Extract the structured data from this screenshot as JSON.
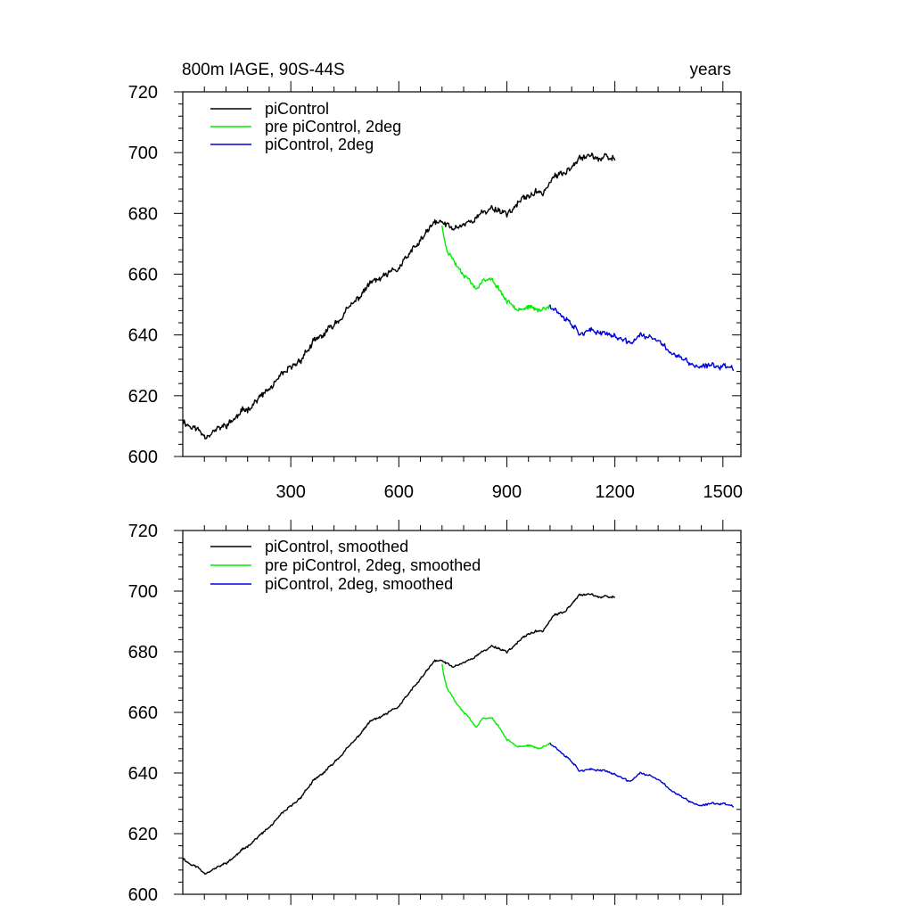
{
  "colors": {
    "picontrol": "#000000",
    "pre_picontrol_2deg": "#00ee00",
    "picontrol_2deg": "#0000dd",
    "axis": "#000000",
    "background": "#ffffff"
  },
  "chart_data": [
    {
      "type": "line",
      "title": "800m IAGE, 90S-44S",
      "title_right": "years",
      "xlabel": "",
      "ylabel": "",
      "xlim": [
        0,
        1550
      ],
      "ylim": [
        600,
        720
      ],
      "xticks": [
        300,
        600,
        900,
        1200,
        1500
      ],
      "xticklabels": [
        "300",
        "600",
        "900",
        "1200",
        "1500"
      ],
      "yticks": [
        600,
        620,
        640,
        660,
        680,
        700,
        720
      ],
      "yticklabels": [
        "600",
        "620",
        "640",
        "660",
        "680",
        "700",
        "720"
      ],
      "grid": false,
      "legend_position": "top-left",
      "series": [
        {
          "name": "piControl",
          "color_key": "picontrol",
          "noise": 1.3,
          "seed": 11,
          "x": [
            0,
            20,
            40,
            60,
            80,
            100,
            130,
            160,
            200,
            240,
            280,
            320,
            360,
            400,
            440,
            480,
            520,
            560,
            600,
            640,
            680,
            700,
            720,
            750,
            790,
            820,
            860,
            900,
            940,
            960,
            1000,
            1030,
            1060,
            1080,
            1100,
            1130,
            1160,
            1200
          ],
          "values": [
            612,
            610,
            609,
            607,
            608,
            609,
            611,
            614,
            618,
            622,
            627,
            631,
            637,
            641,
            646,
            651,
            657,
            659,
            662,
            668,
            674,
            677,
            677,
            675,
            677,
            679,
            682,
            680,
            684,
            686,
            687,
            692,
            693,
            696,
            699,
            699,
            698,
            698
          ]
        },
        {
          "name": "pre piControl, 2deg",
          "color_key": "pre_picontrol_2deg",
          "noise": 0.9,
          "seed": 23,
          "x": [
            720,
            725,
            735,
            760,
            790,
            815,
            830,
            860,
            880,
            900,
            930,
            960,
            990,
            1020
          ],
          "values": [
            676,
            672,
            668,
            663,
            659,
            655,
            658,
            658,
            655,
            651,
            649,
            649,
            648,
            650
          ]
        },
        {
          "name": "piControl, 2deg",
          "color_key": "picontrol_2deg",
          "noise": 1.1,
          "seed": 37,
          "x": [
            1020,
            1050,
            1080,
            1100,
            1130,
            1170,
            1210,
            1240,
            1270,
            1300,
            1330,
            1360,
            1400,
            1440,
            1470,
            1500,
            1530
          ],
          "values": [
            650,
            647,
            644,
            641,
            641,
            641,
            639,
            637,
            640,
            639,
            637,
            634,
            631,
            629,
            630,
            630,
            629
          ]
        }
      ]
    },
    {
      "type": "line",
      "title": "",
      "title_right": "",
      "xlabel": "",
      "ylabel": "",
      "xlim": [
        0,
        1550
      ],
      "ylim": [
        600,
        720
      ],
      "xticks": [
        300,
        600,
        900,
        1200,
        1500
      ],
      "xticklabels": [],
      "yticks": [
        600,
        620,
        640,
        660,
        680,
        700,
        720
      ],
      "yticklabels": [
        "600",
        "620",
        "640",
        "660",
        "680",
        "700",
        "720"
      ],
      "grid": false,
      "legend_position": "top-left",
      "series": [
        {
          "name": "piControl, smoothed",
          "color_key": "picontrol",
          "noise": 0.45,
          "seed": 11,
          "x": [
            0,
            20,
            40,
            60,
            80,
            100,
            130,
            160,
            200,
            240,
            280,
            320,
            360,
            400,
            440,
            480,
            520,
            560,
            600,
            640,
            680,
            700,
            720,
            750,
            790,
            820,
            860,
            900,
            940,
            960,
            1000,
            1030,
            1060,
            1080,
            1100,
            1130,
            1160,
            1200
          ],
          "values": [
            612,
            610,
            609,
            607,
            608,
            609,
            611,
            614,
            618,
            622,
            627,
            631,
            637,
            641,
            646,
            651,
            657,
            659,
            662,
            668,
            674,
            677,
            677,
            675,
            677,
            679,
            682,
            680,
            684,
            686,
            687,
            692,
            693,
            696,
            699,
            699,
            698,
            698
          ]
        },
        {
          "name": "pre piControl, 2deg, smoothed",
          "color_key": "pre_picontrol_2deg",
          "noise": 0.35,
          "seed": 23,
          "x": [
            720,
            725,
            735,
            760,
            790,
            815,
            830,
            860,
            880,
            900,
            930,
            960,
            990,
            1020
          ],
          "values": [
            676,
            672,
            668,
            663,
            659,
            655,
            658,
            658,
            655,
            651,
            649,
            649,
            648,
            650
          ]
        },
        {
          "name": "piControl, 2deg, smoothed",
          "color_key": "picontrol_2deg",
          "noise": 0.4,
          "seed": 37,
          "x": [
            1020,
            1050,
            1080,
            1100,
            1130,
            1170,
            1210,
            1240,
            1270,
            1300,
            1330,
            1360,
            1400,
            1440,
            1470,
            1500,
            1530
          ],
          "values": [
            650,
            647,
            644,
            641,
            641,
            641,
            639,
            637,
            640,
            639,
            637,
            634,
            631,
            629,
            630,
            630,
            629
          ]
        }
      ]
    }
  ]
}
